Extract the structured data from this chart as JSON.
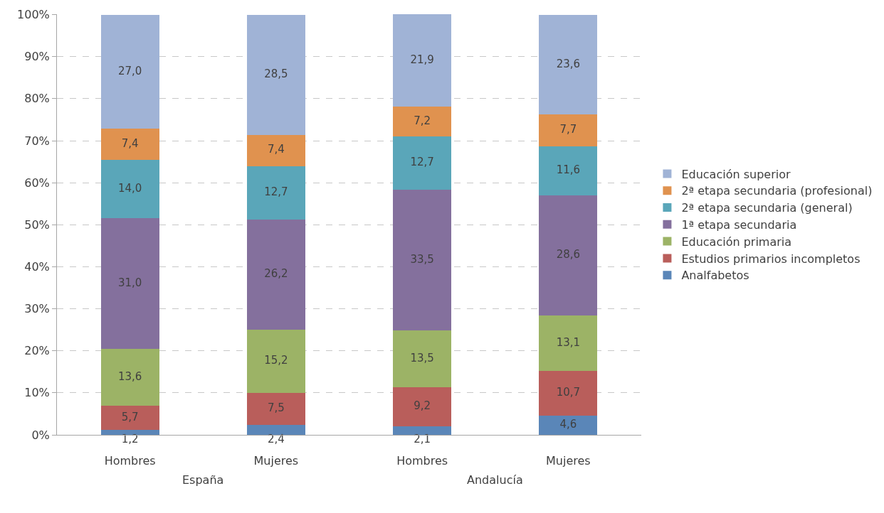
{
  "chart_data": {
    "type": "bar",
    "stacked": true,
    "categories": [
      "Hombres",
      "Mujeres",
      "Hombres",
      "Mujeres"
    ],
    "annotations": [
      "España",
      "Andalucía"
    ],
    "ylim": [
      0,
      100.1
    ],
    "yticks": [
      {
        "value": 0,
        "label": "0%"
      },
      {
        "value": 10,
        "label": "10%"
      },
      {
        "value": 20,
        "label": "20%"
      },
      {
        "value": 30,
        "label": "30%"
      },
      {
        "value": 40,
        "label": "40%"
      },
      {
        "value": 50,
        "label": "50%"
      },
      {
        "value": 60,
        "label": "60%"
      },
      {
        "value": 70,
        "label": "70%"
      },
      {
        "value": 80,
        "label": "80%"
      },
      {
        "value": 90,
        "label": "90%"
      },
      {
        "value": 100,
        "label": "100%"
      }
    ],
    "grid": "y",
    "legend": "right",
    "series": [
      {
        "name": "Analfabetos",
        "color": "#5a86b8",
        "values": [
          1.2,
          2.4,
          2.1,
          4.6
        ],
        "value_labels": [
          "1,2",
          "2,4",
          "2,1",
          "4,6"
        ]
      },
      {
        "name": "Estudios primarios incompletos",
        "color": "#b95e5b",
        "values": [
          5.7,
          7.5,
          9.2,
          10.7
        ],
        "value_labels": [
          "5,7",
          "7,5",
          "9,2",
          "10,7"
        ]
      },
      {
        "name": "Educación primaria",
        "color": "#9cb366",
        "values": [
          13.6,
          15.2,
          13.5,
          13.1
        ],
        "value_labels": [
          "13,6",
          "15,2",
          "13,5",
          "13,1"
        ]
      },
      {
        "name": "1ª etapa secundaria",
        "color": "#84709d",
        "values": [
          31.0,
          26.2,
          33.5,
          28.6
        ],
        "value_labels": [
          "31,0",
          "26,2",
          "33,5",
          "28,6"
        ]
      },
      {
        "name": "2ª etapa secundaria (general)",
        "color": "#5aa6b9",
        "values": [
          14.0,
          12.7,
          12.7,
          11.6
        ],
        "value_labels": [
          "14,0",
          "12,7",
          "12,7",
          "11,6"
        ]
      },
      {
        "name": "2ª etapa secundaria (profesional)",
        "color": "#e0924f",
        "values": [
          7.4,
          7.4,
          7.2,
          7.7
        ],
        "value_labels": [
          "7,4",
          "7,4",
          "7,2",
          "7,7"
        ]
      },
      {
        "name": "Educación superior",
        "color": "#a0b3d6",
        "values": [
          27.0,
          28.5,
          21.9,
          23.6
        ],
        "value_labels": [
          "27,0",
          "28,5",
          "21,9",
          "23,6"
        ]
      }
    ]
  }
}
